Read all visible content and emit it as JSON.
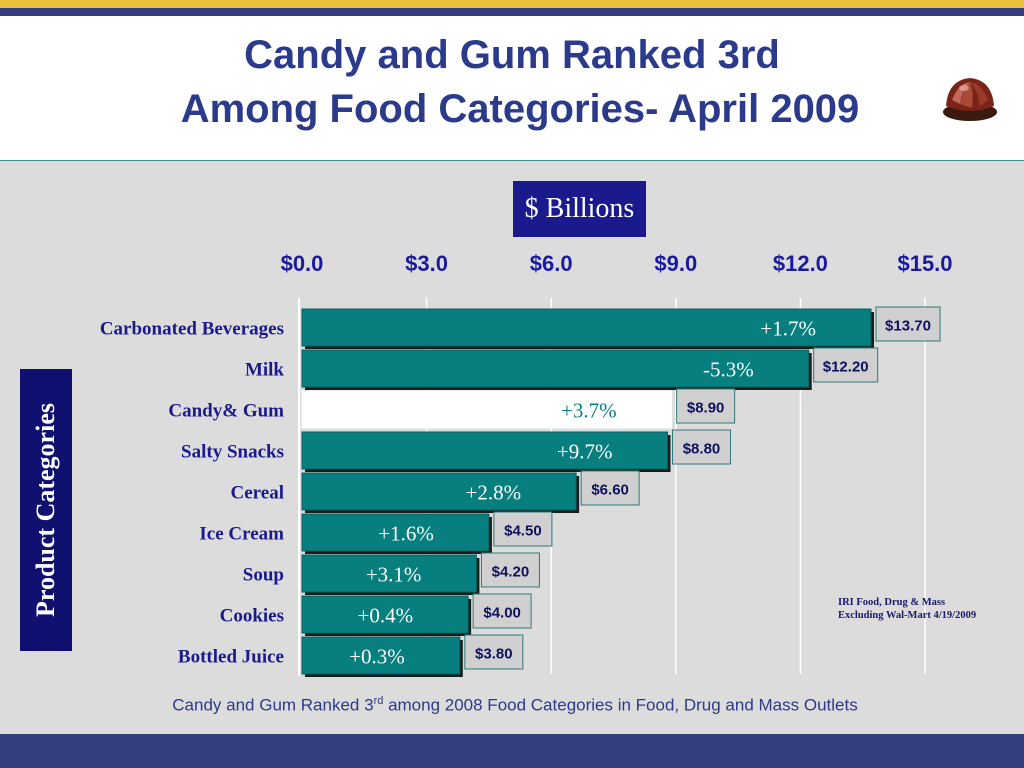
{
  "slide": {
    "title_line1": "Candy and Gum Ranked 3rd",
    "title_line2": "Among Food Categories- April 2009",
    "unit_label": "$ Billions",
    "y_axis_label": "Product Categories",
    "source_line1": "IRI Food, Drug & Mass",
    "source_line2": "Excluding Wal-Mart 4/19/2009",
    "footer_before": "Candy and Gum Ranked 3",
    "footer_sup": "rd",
    "footer_after": " among 2008 Food Categories in Food, Drug and Mass Outlets",
    "logo_icon": "chocolate-truffle-icon"
  },
  "colors": {
    "bar": "#087f7f",
    "highlight_bar": "#ffffff",
    "highlight_text": "#087f7f",
    "title": "#2b3a8a",
    "navy": "#333e7e",
    "gold": "#e8c23a",
    "panel": "#dcdcdc"
  },
  "chart_data": {
    "type": "bar",
    "orientation": "horizontal",
    "categories": [
      "Carbonated Beverages",
      "Milk",
      "Candy& Gum",
      "Salty Snacks",
      "Cereal",
      "Ice Cream",
      "Soup",
      "Cookies",
      "Bottled Juice"
    ],
    "values": [
      13.7,
      12.2,
      8.9,
      8.8,
      6.6,
      4.5,
      4.2,
      4.0,
      3.8
    ],
    "value_labels": [
      "$13.70",
      "$12.20",
      "$8.90",
      "$8.80",
      "$6.60",
      "$4.50",
      "$4.20",
      "$4.00",
      "$3.80"
    ],
    "change_labels": [
      "+1.7%",
      "-5.3%",
      "+3.7%",
      "+9.7%",
      "+2.8%",
      "+1.6%",
      "+3.1%",
      "+0.4%",
      "+0.3%"
    ],
    "highlight_index": 2,
    "xlim": [
      0,
      15
    ],
    "x_ticks": [
      0,
      3,
      6,
      9,
      12,
      15
    ],
    "x_tick_labels": [
      "$0.0",
      "$3.0",
      "$6.0",
      "$9.0",
      "$12.0",
      "$15.0"
    ],
    "x_axis_position": "top",
    "grid": true
  }
}
